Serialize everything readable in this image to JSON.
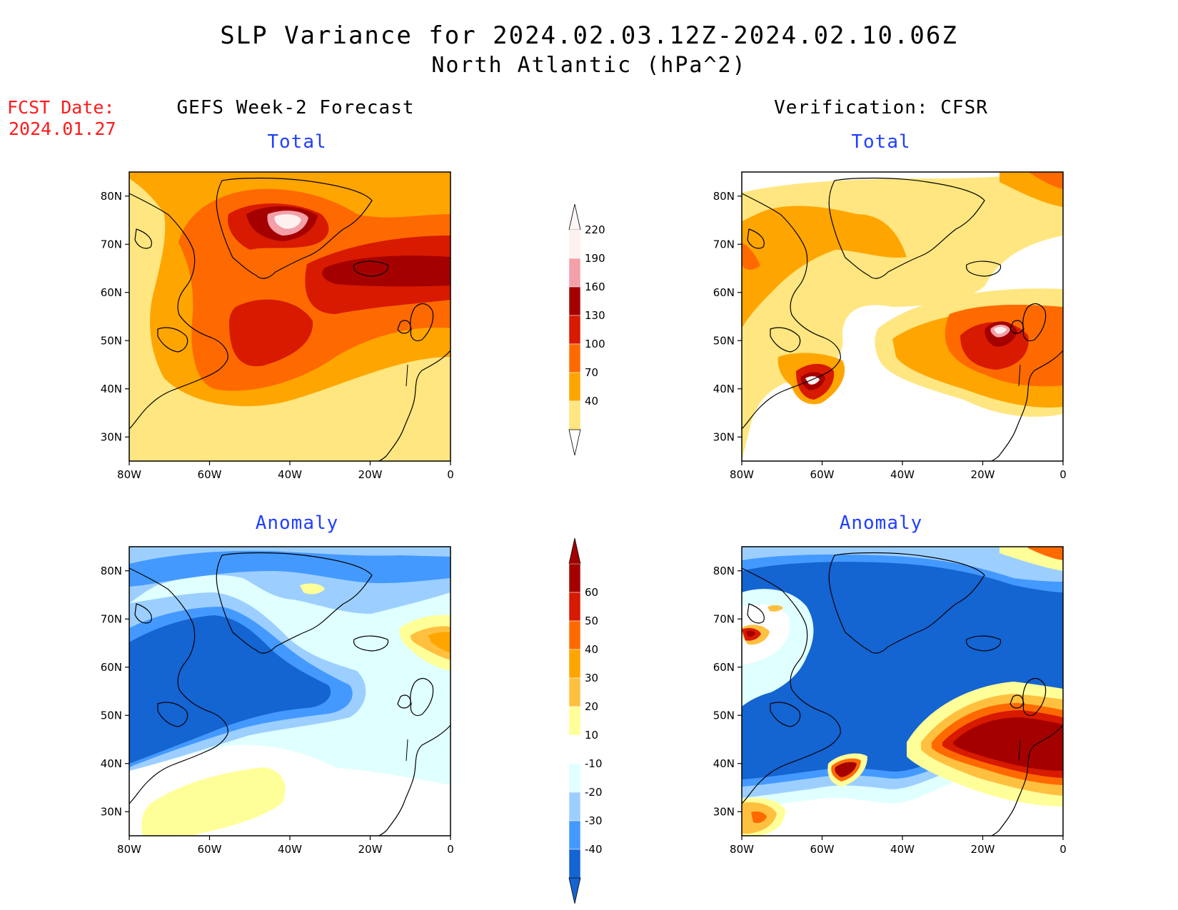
{
  "titles": {
    "line1": "SLP Variance for 2024.02.03.12Z-2024.02.10.06Z",
    "line2": "North Atlantic (hPa^2)",
    "fcst_label": "FCST Date:",
    "fcst_date": "2024.01.27",
    "left_column": "GEFS Week-2 Forecast",
    "right_column": "Verification: CFSR",
    "total": "Total",
    "anomaly": "Anomaly"
  },
  "axes": {
    "lat_ticks": [
      "80N",
      "70N",
      "60N",
      "50N",
      "40N",
      "30N"
    ],
    "lon_ticks": [
      "80W",
      "60W",
      "40W",
      "20W",
      "0"
    ],
    "lat_range": [
      25,
      85
    ],
    "lon_range": [
      -80,
      0
    ]
  },
  "legends": {
    "total": {
      "labels": [
        "220",
        "190",
        "160",
        "130",
        "100",
        "70",
        "40"
      ],
      "colors": [
        "#fff0f0",
        "#f4a0a8",
        "#a50000",
        "#d71a00",
        "#ff6a00",
        "#ffa500",
        "#ffe680"
      ]
    },
    "anomaly": {
      "labels": [
        "60",
        "50",
        "40",
        "30",
        "20",
        "10",
        "-10",
        "-20",
        "-30",
        "-40"
      ],
      "colors": [
        "#a50000",
        "#d71a00",
        "#ff6a00",
        "#ffa500",
        "#ffc040",
        "#ffff99",
        "#ffffff",
        "#e0ffff",
        "#9ccfff",
        "#4499ff",
        "#1464d2"
      ]
    }
  },
  "chart_data": {
    "type": "heatmap",
    "panels": [
      {
        "name": "GEFS Week-2 Forecast Total",
        "max_center": {
          "lon": -40,
          "lat": 73,
          "value": 220
        }
      },
      {
        "name": "Verification CFSR Total",
        "max_center": {
          "lon": -15,
          "lat": 52,
          "value": 220
        }
      },
      {
        "name": "GEFS Week-2 Forecast Anomaly",
        "min_center": {
          "lon": -65,
          "lat": 55,
          "value": -40
        }
      },
      {
        "name": "Verification CFSR Anomaly",
        "max_center": {
          "lon": -10,
          "lat": 42,
          "value": 60
        }
      }
    ]
  }
}
